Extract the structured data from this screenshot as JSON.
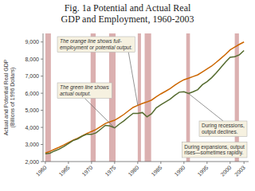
{
  "chart_data": {
    "type": "line",
    "title": "Fig. 1a Potential and Actual Real\nGDP and Employment, 1960-2003",
    "y_label": "Actual and Potential Real GDP\n(Billions of 1996 Dollars)",
    "x": [
      1960,
      1961,
      1962,
      1963,
      1964,
      1965,
      1966,
      1967,
      1968,
      1969,
      1970,
      1971,
      1972,
      1973,
      1974,
      1975,
      1976,
      1977,
      1978,
      1979,
      1980,
      1981,
      1982,
      1983,
      1984,
      1985,
      1986,
      1987,
      1988,
      1989,
      1990,
      1991,
      1992,
      1993,
      1994,
      1995,
      1996,
      1997,
      1998,
      1999,
      2000,
      2001,
      2002,
      2003
    ],
    "series": [
      {
        "color": "#cc6600",
        "values": [
          2500,
          2600,
          2720,
          2840,
          2970,
          3110,
          3250,
          3370,
          3510,
          3650,
          3760,
          3880,
          4050,
          4230,
          4330,
          4420,
          4580,
          4760,
          4970,
          5170,
          5290,
          5400,
          5490,
          5600,
          5790,
          5960,
          6110,
          6270,
          6470,
          6640,
          6790,
          6880,
          6980,
          7080,
          7250,
          7420,
          7590,
          7810,
          8040,
          8280,
          8540,
          8700,
          8860,
          9000
        ]
      },
      {
        "color": "#556b2f",
        "values": [
          2460,
          2490,
          2620,
          2730,
          2880,
          3050,
          3230,
          3330,
          3490,
          3600,
          3590,
          3680,
          3900,
          4120,
          4080,
          3970,
          4190,
          4380,
          4610,
          4820,
          4820,
          4870,
          4620,
          4800,
          5140,
          5320,
          5490,
          5650,
          5870,
          6060,
          6090,
          5980,
          6090,
          6210,
          6500,
          6680,
          6910,
          7190,
          7510,
          7820,
          8100,
          8140,
          8250,
          8500
        ]
      }
    ],
    "recessions": {
      "color": "#dbb0b0",
      "bands": [
        [
          1960.0,
          1961.2
        ],
        [
          1969.8,
          1970.9
        ],
        [
          1973.8,
          1975.2
        ],
        [
          1980.0,
          1980.7
        ],
        [
          1981.5,
          1982.9
        ],
        [
          1990.5,
          1991.3
        ],
        [
          2001.0,
          2001.9
        ]
      ]
    },
    "xlim": [
      1959.5,
      2004
    ],
    "xticks": [
      1960,
      1965,
      1970,
      1975,
      1980,
      1985,
      1990,
      1995,
      2000,
      2003
    ],
    "ylim": [
      2000,
      9500
    ],
    "yticks": [
      {
        "value": 2000,
        "label": "2,000"
      },
      {
        "value": 3000,
        "label": "3,000"
      },
      {
        "value": 4000,
        "label": "4,000"
      },
      {
        "value": 5000,
        "label": "5,000"
      },
      {
        "value": 6000,
        "label": "6,000"
      },
      {
        "value": 7000,
        "label": "7,000"
      },
      {
        "value": 8000,
        "label": "8,000"
      },
      {
        "value": 9000,
        "label": "9,000"
      }
    ],
    "grid": false,
    "annotations": [
      {
        "text": "The orange line shows full-\nemployment or potential output."
      },
      {
        "text": "The green line shows\nactual output."
      },
      {
        "text": "During recessions,\noutput declines."
      },
      {
        "text": "During expansions, output\nrises—sometimes rapidly."
      }
    ]
  }
}
